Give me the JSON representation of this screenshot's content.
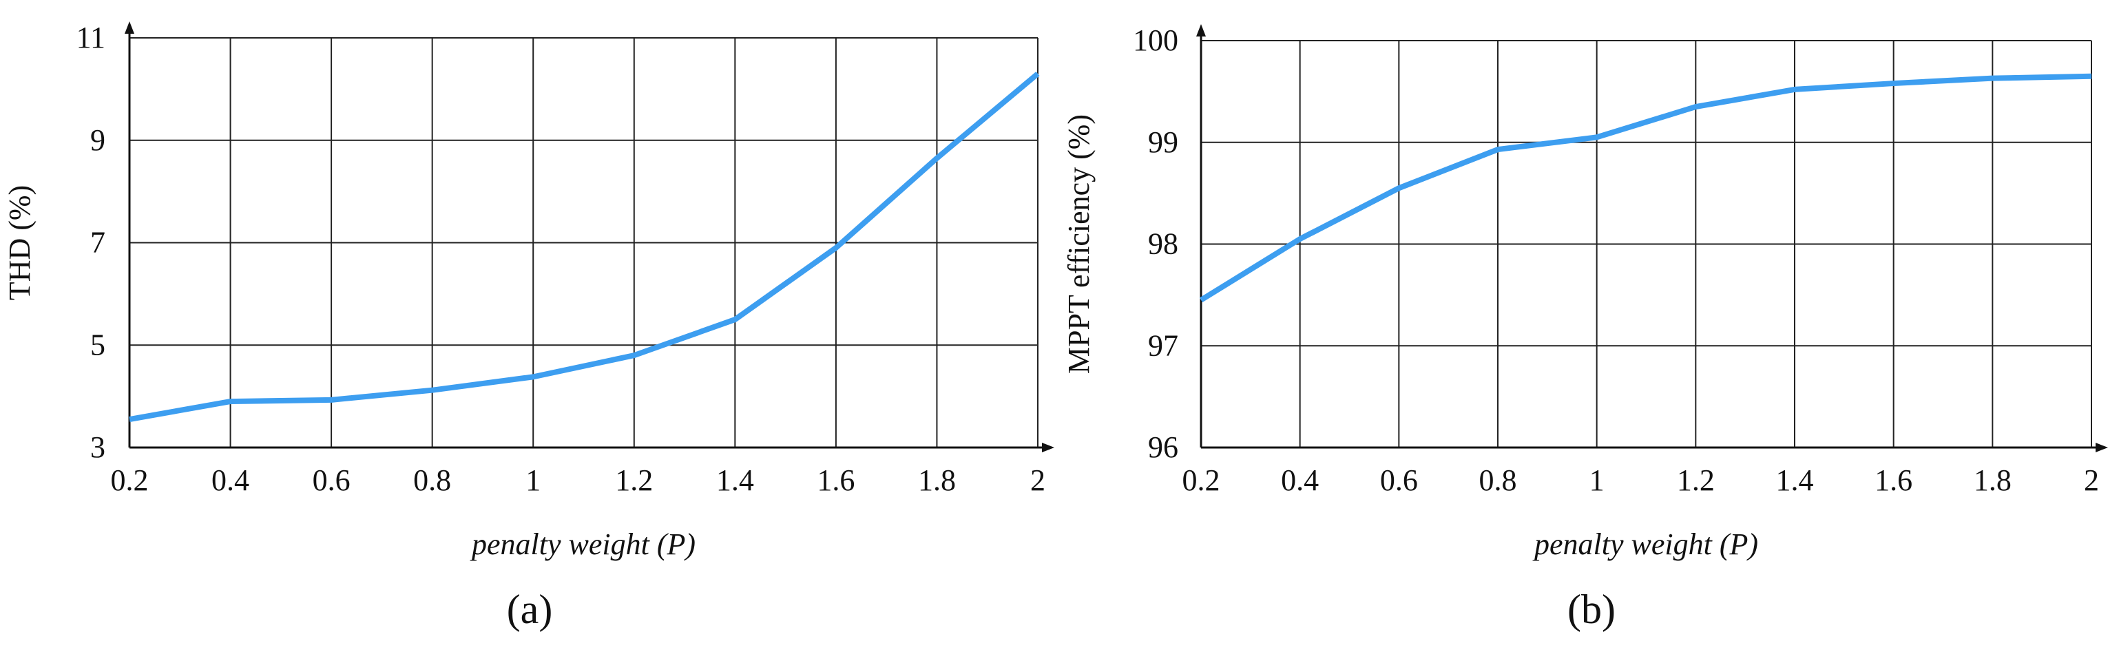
{
  "chart_data": [
    {
      "type": "line",
      "caption": "(a)",
      "xlabel": "penalty weight (P)",
      "ylabel": "THD (%)",
      "x": [
        0.2,
        0.4,
        0.6,
        0.8,
        1,
        1.2,
        1.4,
        1.6,
        1.8,
        2
      ],
      "values": [
        3.55,
        3.9,
        3.93,
        4.12,
        4.38,
        4.8,
        5.5,
        6.9,
        8.65,
        10.3
      ],
      "color": "#3d9ef0",
      "xlim": [
        0.2,
        2
      ],
      "xticks": [
        0.2,
        0.4,
        0.6,
        0.8,
        1,
        1.2,
        1.4,
        1.6,
        1.8,
        2
      ],
      "ylim": [
        3,
        11
      ],
      "yticks": [
        3,
        5,
        7,
        9,
        11
      ],
      "grid": true
    },
    {
      "type": "line",
      "caption": "(b)",
      "xlabel": "penalty weight (P)",
      "ylabel": "MPPT efficiency (%)",
      "x": [
        0.2,
        0.4,
        0.6,
        0.8,
        1,
        1.2,
        1.4,
        1.6,
        1.8,
        2
      ],
      "values": [
        97.45,
        98.05,
        98.55,
        98.93,
        99.05,
        99.35,
        99.52,
        99.58,
        99.63,
        99.65
      ],
      "color": "#3d9ef0",
      "xlim": [
        0.2,
        2
      ],
      "xticks": [
        0.2,
        0.4,
        0.6,
        0.8,
        1,
        1.2,
        1.4,
        1.6,
        1.8,
        2
      ],
      "ylim": [
        96,
        100
      ],
      "yticks": [
        96,
        97,
        98,
        99,
        100
      ],
      "grid": true
    }
  ]
}
